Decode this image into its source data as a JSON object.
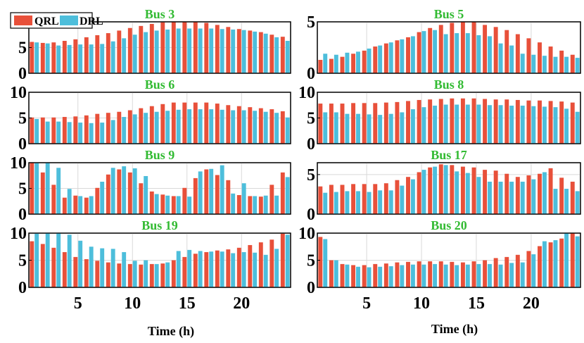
{
  "figure": {
    "xlabel": "Time (h)",
    "legend": [
      {
        "name": "QRL",
        "color": "#E8503A"
      },
      {
        "name": "DRL",
        "color": "#4DBEDB"
      }
    ],
    "title_color": "#33BB33"
  },
  "chart_data": [
    {
      "type": "bar",
      "title": "Bus 3",
      "x": [
        1,
        2,
        3,
        4,
        5,
        6,
        7,
        8,
        9,
        10,
        11,
        12,
        13,
        14,
        15,
        16,
        17,
        18,
        19,
        20,
        21,
        22,
        23,
        24
      ],
      "ylim": [
        0,
        10
      ],
      "yticks": [
        0,
        5,
        10
      ],
      "xticks": [],
      "grid": true,
      "legend": "top-left",
      "series": [
        {
          "name": "QRL",
          "values": [
            6.1,
            5.9,
            6.0,
            6.3,
            6.6,
            7.0,
            7.4,
            7.8,
            8.3,
            8.8,
            9.2,
            9.6,
            9.9,
            10,
            10,
            10,
            9.8,
            9.4,
            9.0,
            8.6,
            8.3,
            8.0,
            7.5,
            7.1
          ]
        },
        {
          "name": "DRL",
          "values": [
            6.0,
            5.8,
            5.4,
            5.5,
            5.6,
            5.6,
            5.7,
            6.2,
            6.8,
            7.5,
            8.0,
            8.3,
            8.5,
            8.7,
            8.7,
            8.7,
            8.7,
            8.6,
            8.5,
            8.4,
            8.1,
            7.7,
            7.0,
            6.3
          ]
        }
      ]
    },
    {
      "type": "bar",
      "title": "Bus 5",
      "x": [
        1,
        2,
        3,
        4,
        5,
        6,
        7,
        8,
        9,
        10,
        11,
        12,
        13,
        14,
        15,
        16,
        17,
        18,
        19,
        20,
        21,
        22,
        23,
        24
      ],
      "ylim": [
        0,
        5
      ],
      "yticks": [
        0,
        5
      ],
      "xticks": [],
      "grid": true,
      "series": [
        {
          "name": "QRL",
          "values": [
            1.3,
            1.4,
            1.6,
            1.9,
            2.2,
            2.6,
            2.9,
            3.2,
            3.5,
            4.0,
            4.4,
            4.7,
            4.9,
            5.0,
            5.0,
            4.7,
            4.5,
            4.2,
            3.8,
            3.4,
            3.0,
            2.6,
            2.2,
            1.8
          ]
        },
        {
          "name": "DRL",
          "values": [
            1.9,
            1.8,
            2.0,
            2.1,
            2.4,
            2.7,
            3.0,
            3.3,
            3.6,
            4.1,
            4.2,
            3.8,
            3.9,
            3.9,
            3.7,
            3.6,
            2.9,
            2.7,
            1.9,
            1.8,
            1.7,
            1.6,
            1.6,
            1.5
          ]
        }
      ]
    },
    {
      "type": "bar",
      "title": "Bus 6",
      "x": [
        1,
        2,
        3,
        4,
        5,
        6,
        7,
        8,
        9,
        10,
        11,
        12,
        13,
        14,
        15,
        16,
        17,
        18,
        19,
        20,
        21,
        22,
        23,
        24
      ],
      "ylim": [
        0,
        10
      ],
      "yticks": [
        0,
        5,
        10
      ],
      "xticks": [],
      "grid": true,
      "series": [
        {
          "name": "QRL",
          "values": [
            5.1,
            5.1,
            5.1,
            5.2,
            5.3,
            5.5,
            5.8,
            6.0,
            6.2,
            6.5,
            6.9,
            7.3,
            7.7,
            8.0,
            8.0,
            8.0,
            8.0,
            7.8,
            7.5,
            7.3,
            7.1,
            6.9,
            6.7,
            6.3
          ]
        },
        {
          "name": "DRL",
          "values": [
            4.8,
            4.3,
            4.3,
            4.2,
            4.1,
            4.0,
            4.1,
            4.6,
            5.2,
            5.7,
            6.0,
            6.2,
            6.4,
            6.6,
            6.7,
            6.7,
            6.7,
            6.6,
            6.5,
            6.5,
            6.4,
            6.2,
            6.0,
            5.1
          ]
        }
      ]
    },
    {
      "type": "bar",
      "title": "Bus 8",
      "x": [
        1,
        2,
        3,
        4,
        5,
        6,
        7,
        8,
        9,
        10,
        11,
        12,
        13,
        14,
        15,
        16,
        17,
        18,
        19,
        20,
        21,
        22,
        23,
        24
      ],
      "ylim": [
        0,
        10
      ],
      "yticks": [
        0,
        5,
        10
      ],
      "xticks": [],
      "grid": true,
      "series": [
        {
          "name": "QRL",
          "values": [
            7.8,
            7.8,
            7.8,
            7.9,
            7.9,
            7.9,
            8.0,
            8.1,
            8.3,
            8.5,
            8.6,
            8.7,
            8.8,
            8.8,
            8.8,
            8.7,
            8.6,
            8.6,
            8.5,
            8.4,
            8.4,
            8.3,
            8.2,
            8.0
          ]
        },
        {
          "name": "DRL",
          "values": [
            6.1,
            6.1,
            5.8,
            5.8,
            5.7,
            5.6,
            5.8,
            6.1,
            6.7,
            7.1,
            7.4,
            7.6,
            7.6,
            7.6,
            7.6,
            7.5,
            7.5,
            7.4,
            7.4,
            7.3,
            7.2,
            7.1,
            6.8,
            6.2
          ]
        }
      ]
    },
    {
      "type": "bar",
      "title": "Bus 9",
      "x": [
        1,
        2,
        3,
        4,
        5,
        6,
        7,
        8,
        9,
        10,
        11,
        12,
        13,
        14,
        15,
        16,
        17,
        18,
        19,
        20,
        21,
        22,
        23,
        24
      ],
      "ylim": [
        0,
        10
      ],
      "yticks": [
        0,
        5,
        10
      ],
      "xticks": [],
      "grid": true,
      "series": [
        {
          "name": "QRL",
          "values": [
            10,
            8.1,
            5.7,
            3.2,
            3.6,
            3.2,
            5.1,
            7.7,
            8.7,
            8.1,
            6.0,
            4.4,
            3.8,
            3.5,
            5.1,
            7.0,
            8.7,
            7.6,
            6.6,
            3.7,
            3.5,
            3.4,
            5.7,
            8.1
          ]
        },
        {
          "name": "DRL",
          "values": [
            9.9,
            10,
            9.0,
            4.9,
            3.5,
            3.5,
            6.3,
            9.0,
            9.3,
            8.9,
            7.4,
            3.9,
            3.6,
            3.5,
            3.4,
            8.3,
            8.8,
            9.5,
            4.0,
            6.0,
            3.5,
            3.6,
            3.6,
            7.2
          ]
        }
      ]
    },
    {
      "type": "bar",
      "title": "Bus 17",
      "x": [
        1,
        2,
        3,
        4,
        5,
        6,
        7,
        8,
        9,
        10,
        11,
        12,
        13,
        14,
        15,
        16,
        17,
        18,
        19,
        20,
        21,
        22,
        23,
        24
      ],
      "ylim": [
        0,
        6.5
      ],
      "yticks": [
        0,
        5
      ],
      "xticks": [],
      "grid": true,
      "series": [
        {
          "name": "QRL",
          "values": [
            3.5,
            3.7,
            3.7,
            3.8,
            3.8,
            3.8,
            3.9,
            4.3,
            4.7,
            5.3,
            5.9,
            6.3,
            6.2,
            6.0,
            5.9,
            5.6,
            5.5,
            5.1,
            4.7,
            4.9,
            5.1,
            5.8,
            4.6,
            4.1
          ]
        },
        {
          "name": "DRL",
          "values": [
            2.7,
            2.8,
            2.9,
            2.9,
            2.8,
            3.0,
            3.0,
            3.6,
            4.4,
            5.6,
            6.0,
            6.2,
            5.4,
            5.2,
            4.7,
            4.1,
            4.1,
            4.1,
            4.1,
            4.4,
            5.3,
            3.2,
            3.2,
            2.9
          ]
        }
      ]
    },
    {
      "type": "bar",
      "title": "Bus 19",
      "x": [
        1,
        2,
        3,
        4,
        5,
        6,
        7,
        8,
        9,
        10,
        11,
        12,
        13,
        14,
        15,
        16,
        17,
        18,
        19,
        20,
        21,
        22,
        23,
        24
      ],
      "ylim": [
        0,
        10
      ],
      "yticks": [
        0,
        5,
        10
      ],
      "xticks": [
        5,
        10,
        15,
        20
      ],
      "grid": true,
      "series": [
        {
          "name": "QRL",
          "values": [
            8.5,
            8.0,
            7.3,
            6.5,
            5.6,
            5.2,
            4.9,
            4.6,
            4.4,
            4.3,
            4.2,
            4.3,
            4.4,
            5.0,
            5.6,
            6.2,
            6.5,
            6.8,
            7.0,
            7.3,
            7.8,
            8.3,
            8.8,
            9.9
          ]
        },
        {
          "name": "DRL",
          "values": [
            9.9,
            10,
            10,
            9.7,
            8.6,
            7.5,
            7.2,
            7.1,
            6.5,
            4.9,
            5.0,
            4.3,
            4.6,
            6.7,
            6.9,
            6.7,
            6.6,
            6.6,
            6.3,
            6.5,
            6.4,
            6.0,
            7.1,
            9.7
          ]
        }
      ]
    },
    {
      "type": "bar",
      "title": "Bus 20",
      "x": [
        1,
        2,
        3,
        4,
        5,
        6,
        7,
        8,
        9,
        10,
        11,
        12,
        13,
        14,
        15,
        16,
        17,
        18,
        19,
        20,
        21,
        22,
        23,
        24
      ],
      "ylim": [
        0,
        10
      ],
      "yticks": [
        0,
        5,
        10
      ],
      "xticks": [
        5,
        10,
        15,
        20
      ],
      "grid": true,
      "series": [
        {
          "name": "QRL",
          "values": [
            9.3,
            5.0,
            4.3,
            4.1,
            4.1,
            4.3,
            4.4,
            4.6,
            4.7,
            4.8,
            4.8,
            4.8,
            4.7,
            4.6,
            4.8,
            5.0,
            5.4,
            5.6,
            6.0,
            6.7,
            7.6,
            8.3,
            9.0,
            10
          ]
        },
        {
          "name": "DRL",
          "values": [
            8.9,
            5.0,
            4.2,
            3.8,
            3.7,
            3.8,
            3.9,
            4.1,
            4.2,
            4.2,
            4.3,
            4.2,
            4.1,
            4.2,
            4.3,
            4.3,
            4.2,
            4.5,
            4.6,
            6.1,
            8.5,
            8.7,
            10,
            9.4
          ]
        }
      ]
    }
  ]
}
